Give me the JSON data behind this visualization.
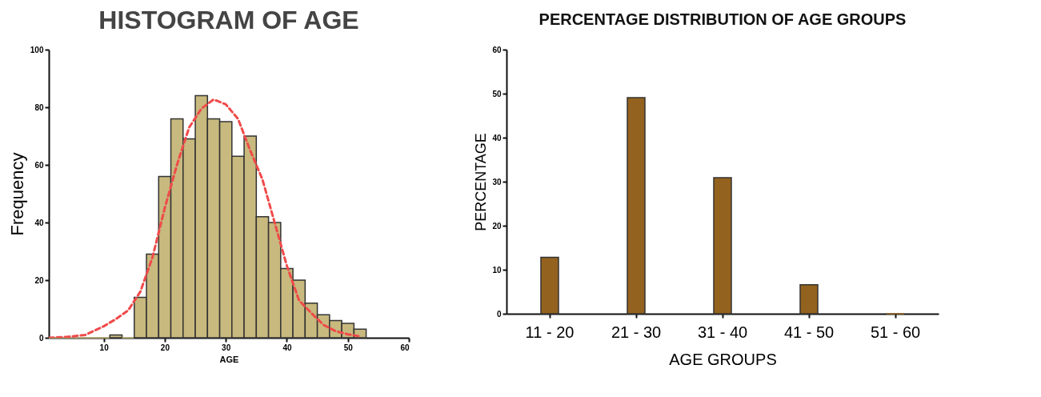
{
  "chart_data": [
    {
      "type": "histogram",
      "title": "HISTOGRAM OF AGE",
      "xlabel": "AGE",
      "ylabel": "Frequency",
      "bins": [
        1,
        3,
        5,
        7,
        9,
        11,
        13,
        15,
        17,
        19,
        21,
        23,
        25,
        27,
        29,
        31,
        33,
        35,
        37,
        39,
        41,
        43,
        45,
        47,
        49,
        51,
        53
      ],
      "values": [
        0,
        0,
        0,
        0,
        0,
        1,
        0,
        14,
        29,
        56,
        76,
        69,
        84,
        76,
        75,
        63,
        70,
        42,
        40,
        24,
        20,
        12,
        8,
        6,
        5,
        3
      ],
      "color": "#c8b97e",
      "series": [
        {
          "type": "line",
          "color": "#f04a4a",
          "line_style": "dashed",
          "x": [
            1,
            4,
            7,
            10,
            12,
            14,
            16,
            18,
            20,
            22,
            24,
            26,
            28,
            30,
            32,
            34,
            36,
            38,
            40,
            42,
            44,
            46,
            48,
            50,
            52
          ],
          "values": [
            0,
            0.3,
            1,
            4,
            6.5,
            9.5,
            16,
            28,
            45,
            60,
            73,
            79.5,
            82.7,
            81,
            76,
            65,
            55,
            40,
            25,
            13,
            8.6,
            4.5,
            2.3,
            1.2,
            0.5
          ]
        }
      ],
      "xlim": [
        1,
        60
      ],
      "xticks": [
        10,
        20,
        30,
        40,
        50,
        60
      ],
      "ylim": [
        0,
        100
      ],
      "yticks": [
        0,
        20,
        40,
        60,
        80,
        100
      ],
      "grid": false
    },
    {
      "type": "bar",
      "title": "PERCENTAGE DISTRIBUTION OF AGE GROUPS",
      "xlabel": "AGE GROUPS",
      "ylabel": "PERCENTAGE",
      "categories": [
        "11 - 20",
        "21 - 30",
        "31 - 40",
        "41 - 50",
        "51 - 60"
      ],
      "values": [
        12.8,
        49.1,
        30.9,
        6.6,
        0
      ],
      "color": "#94621f",
      "ylim": [
        0,
        60
      ],
      "yticks": [
        0,
        10,
        20,
        30,
        40,
        50,
        60
      ],
      "grid": false
    }
  ]
}
